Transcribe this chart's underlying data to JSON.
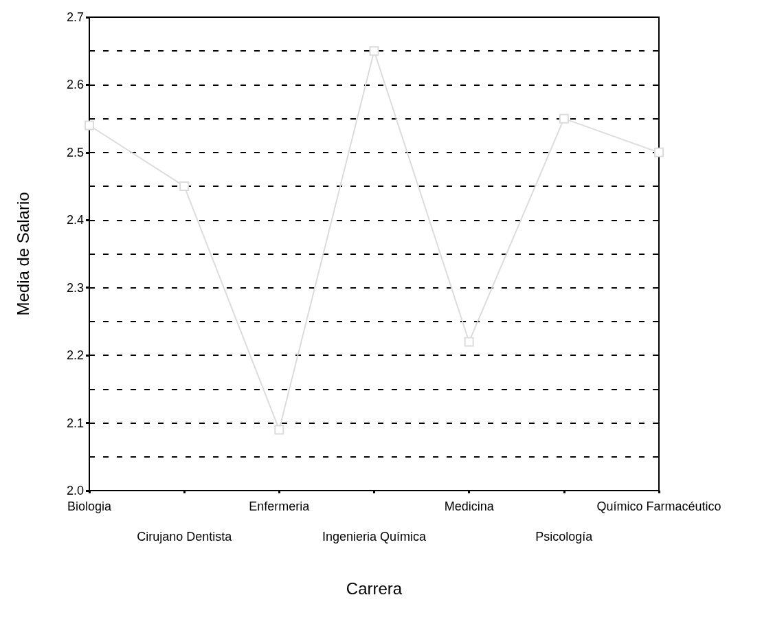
{
  "chart_data": {
    "type": "line",
    "xlabel": "Carrera",
    "ylabel": "Media de Salario",
    "categories": [
      "Biologia",
      "Cirujano Dentista",
      "Enfermeria",
      "Ingenieria Química",
      "Medicina",
      "Psicología",
      "Químico Farmacéutico"
    ],
    "series": [
      {
        "color": "#dcdcdc",
        "values": [
          2.54,
          2.45,
          2.09,
          2.65,
          2.22,
          2.55,
          2.5
        ]
      }
    ],
    "ylim": [
      2.0,
      2.7
    ],
    "yticks": [
      {
        "value": 2,
        "label": "2.0"
      },
      {
        "value": 2.05,
        "label": null
      },
      {
        "value": 2.1,
        "label": "2.1"
      },
      {
        "value": 2.15,
        "label": null
      },
      {
        "value": 2.2,
        "label": "2.2"
      },
      {
        "value": 2.25,
        "label": null
      },
      {
        "value": 2.3,
        "label": "2.3"
      },
      {
        "value": 2.35,
        "label": null
      },
      {
        "value": 2.4,
        "label": "2.4"
      },
      {
        "value": 2.45,
        "label": null
      },
      {
        "value": 2.5,
        "label": "2.5"
      },
      {
        "value": 2.55,
        "label": null
      },
      {
        "value": 2.6,
        "label": "2.6"
      },
      {
        "value": 2.65,
        "label": null
      },
      {
        "value": 2.7,
        "label": "2.7"
      }
    ],
    "grid": "y",
    "marker": "square",
    "line_style": "solid"
  }
}
